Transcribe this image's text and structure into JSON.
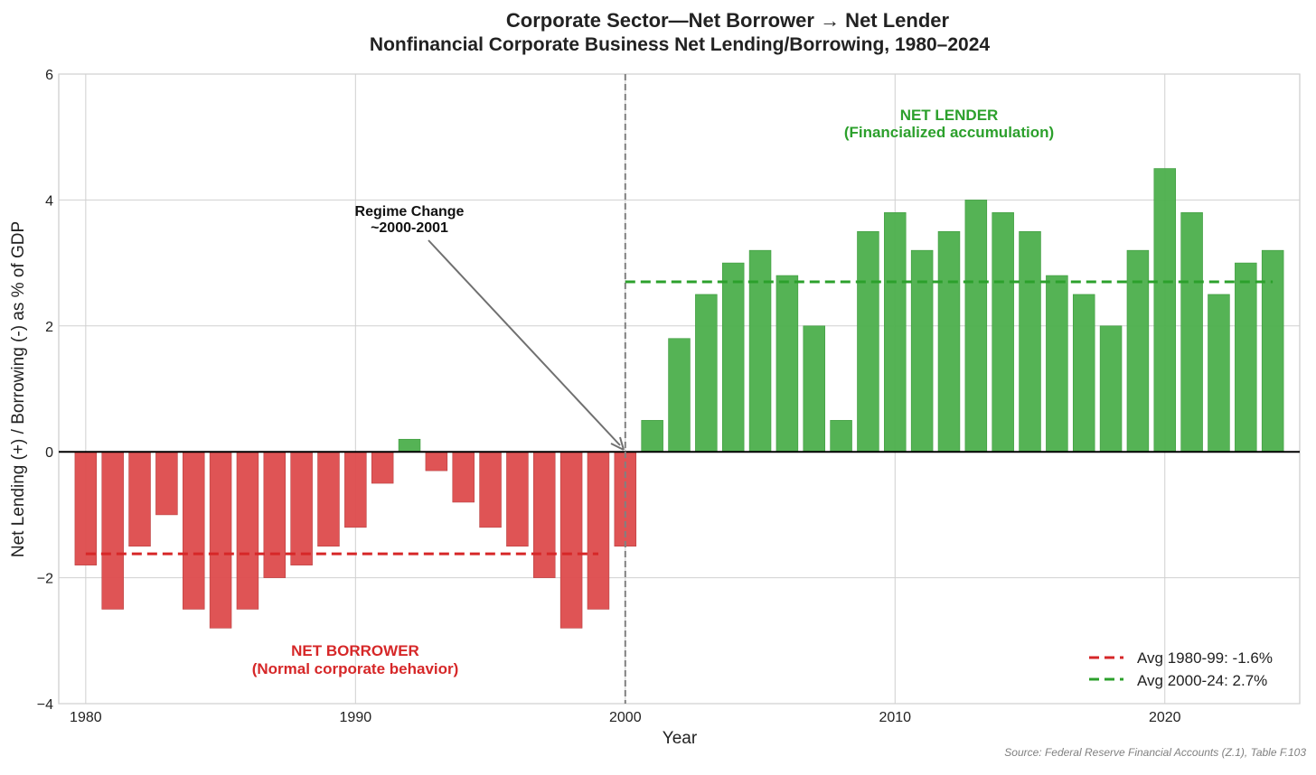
{
  "chart_data": {
    "type": "bar",
    "title": "Corporate Sector—Net Borrower → Net Lender",
    "subtitle": "Nonfinancial Corporate Business Net Lending/Borrowing, 1980–2024",
    "xlabel": "Year",
    "ylabel": "Net Lending (+) / Borrowing (-) as % of GDP",
    "xlim": [
      1979,
      2025
    ],
    "ylim": [
      -4,
      6
    ],
    "xticks": [
      1980,
      1990,
      2000,
      2010,
      2020
    ],
    "yticks": [
      -4,
      -2,
      0,
      2,
      4,
      6
    ],
    "ytick_labels": [
      "−4",
      "−2",
      "0",
      "2",
      "4",
      "6"
    ],
    "grid": true,
    "x": [
      1980,
      1981,
      1982,
      1983,
      1984,
      1985,
      1986,
      1987,
      1988,
      1989,
      1990,
      1991,
      1992,
      1993,
      1994,
      1995,
      1996,
      1997,
      1998,
      1999,
      2000,
      2001,
      2002,
      2003,
      2004,
      2005,
      2006,
      2007,
      2008,
      2009,
      2010,
      2011,
      2012,
      2013,
      2014,
      2015,
      2016,
      2017,
      2018,
      2019,
      2020,
      2021,
      2022,
      2023,
      2024
    ],
    "values": [
      -1.8,
      -2.5,
      -1.5,
      -1.0,
      -2.5,
      -2.8,
      -2.5,
      -2.0,
      -1.8,
      -1.5,
      -1.2,
      -0.5,
      0.2,
      -0.3,
      -0.8,
      -1.2,
      -1.5,
      -2.0,
      -2.8,
      -2.5,
      -1.5,
      0.5,
      1.8,
      2.5,
      3.0,
      3.2,
      2.8,
      2.0,
      0.5,
      3.5,
      3.8,
      3.2,
      3.5,
      4.0,
      3.8,
      3.5,
      2.8,
      2.5,
      2.0,
      3.2,
      4.5,
      3.8,
      2.5,
      3.0,
      3.2
    ],
    "colors": {
      "positive": "#2ca02c",
      "negative": "#d62728"
    },
    "reference_lines": [
      {
        "name": "Avg 1980-99: -1.6%",
        "y": -1.62,
        "x_range": [
          1980,
          1999
        ],
        "color": "#d62728",
        "style": "dashed"
      },
      {
        "name": "Avg 2000-24: 2.7%",
        "y": 2.7,
        "x_range": [
          2000,
          2024
        ],
        "color": "#2ca02c",
        "style": "dashed"
      }
    ],
    "vertical_line": {
      "x": 2000,
      "color": "#808080",
      "style": "dashed"
    },
    "legend_position": "lower-right",
    "annotations": {
      "regime": {
        "lines": [
          "Regime Change",
          "~2000-2001"
        ],
        "arrow_to": [
          2000,
          0
        ]
      },
      "lender": {
        "lines": [
          "NET LENDER",
          "(Financialized accumulation)"
        ],
        "color": "#2ca02c"
      },
      "borrower": {
        "lines": [
          "NET BORROWER",
          "(Normal corporate behavior)"
        ],
        "color": "#d62728"
      }
    },
    "source": "Source: Federal Reserve Financial Accounts (Z.1), Table F.103"
  }
}
